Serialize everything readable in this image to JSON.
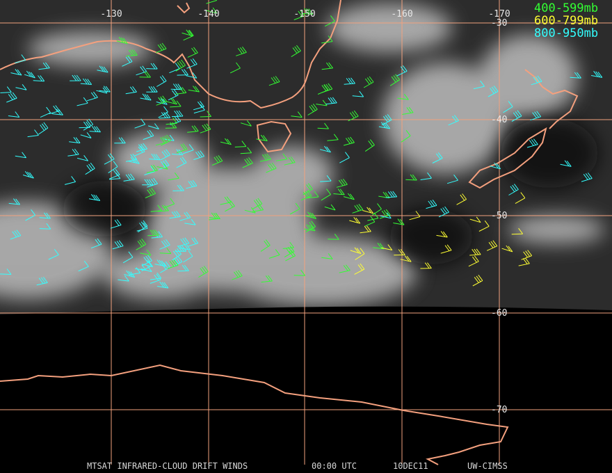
{
  "header": {
    "longitude_labels": [
      "-130",
      "-140",
      "-150",
      "-160",
      "-170"
    ],
    "latitude_labels": [
      "-30",
      "-40",
      "-50",
      "-60",
      "-70"
    ]
  },
  "legend": [
    {
      "label": "400-599mb",
      "color": "#33ff33"
    },
    {
      "label": "600-799mb",
      "color": "#ffff33"
    },
    {
      "label": "800-950mb",
      "color": "#33ffff"
    }
  ],
  "footer": {
    "product": "MTSAT INFRARED-CLOUD DRIFT WINDS",
    "time": "00:00 UTC",
    "date": "10DEC11",
    "source": "UW-CIMSS"
  }
}
